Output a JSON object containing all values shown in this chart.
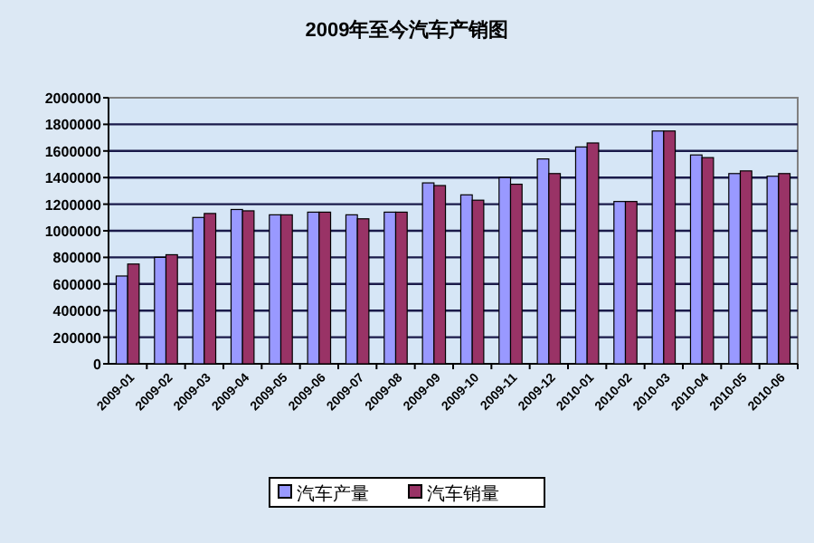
{
  "chart_data": {
    "type": "bar",
    "title": "2009年至今汽车产销图",
    "categories": [
      "2009-01",
      "2009-02",
      "2009-03",
      "2009-04",
      "2009-05",
      "2009-06",
      "2009-07",
      "2009-08",
      "2009-09",
      "2009-10",
      "2009-11",
      "2009-12",
      "2010-01",
      "2010-02",
      "2010-03",
      "2010-04",
      "2010-05",
      "2010-06"
    ],
    "series": [
      {
        "name": "汽车产量",
        "color": "#9999ff",
        "values": [
          660000,
          800000,
          1100000,
          1160000,
          1120000,
          1140000,
          1120000,
          1140000,
          1360000,
          1270000,
          1400000,
          1540000,
          1630000,
          1220000,
          1750000,
          1570000,
          1430000,
          1410000
        ]
      },
      {
        "name": "汽车销量",
        "color": "#993366",
        "values": [
          750000,
          820000,
          1130000,
          1150000,
          1120000,
          1140000,
          1090000,
          1140000,
          1340000,
          1230000,
          1350000,
          1430000,
          1660000,
          1220000,
          1750000,
          1550000,
          1450000,
          1430000
        ]
      }
    ],
    "ylim": [
      0,
      2000000
    ],
    "yticks": [
      0,
      200000,
      400000,
      600000,
      800000,
      1000000,
      1200000,
      1400000,
      1600000,
      1800000,
      2000000
    ],
    "grid": "y",
    "legend": "bottom"
  }
}
